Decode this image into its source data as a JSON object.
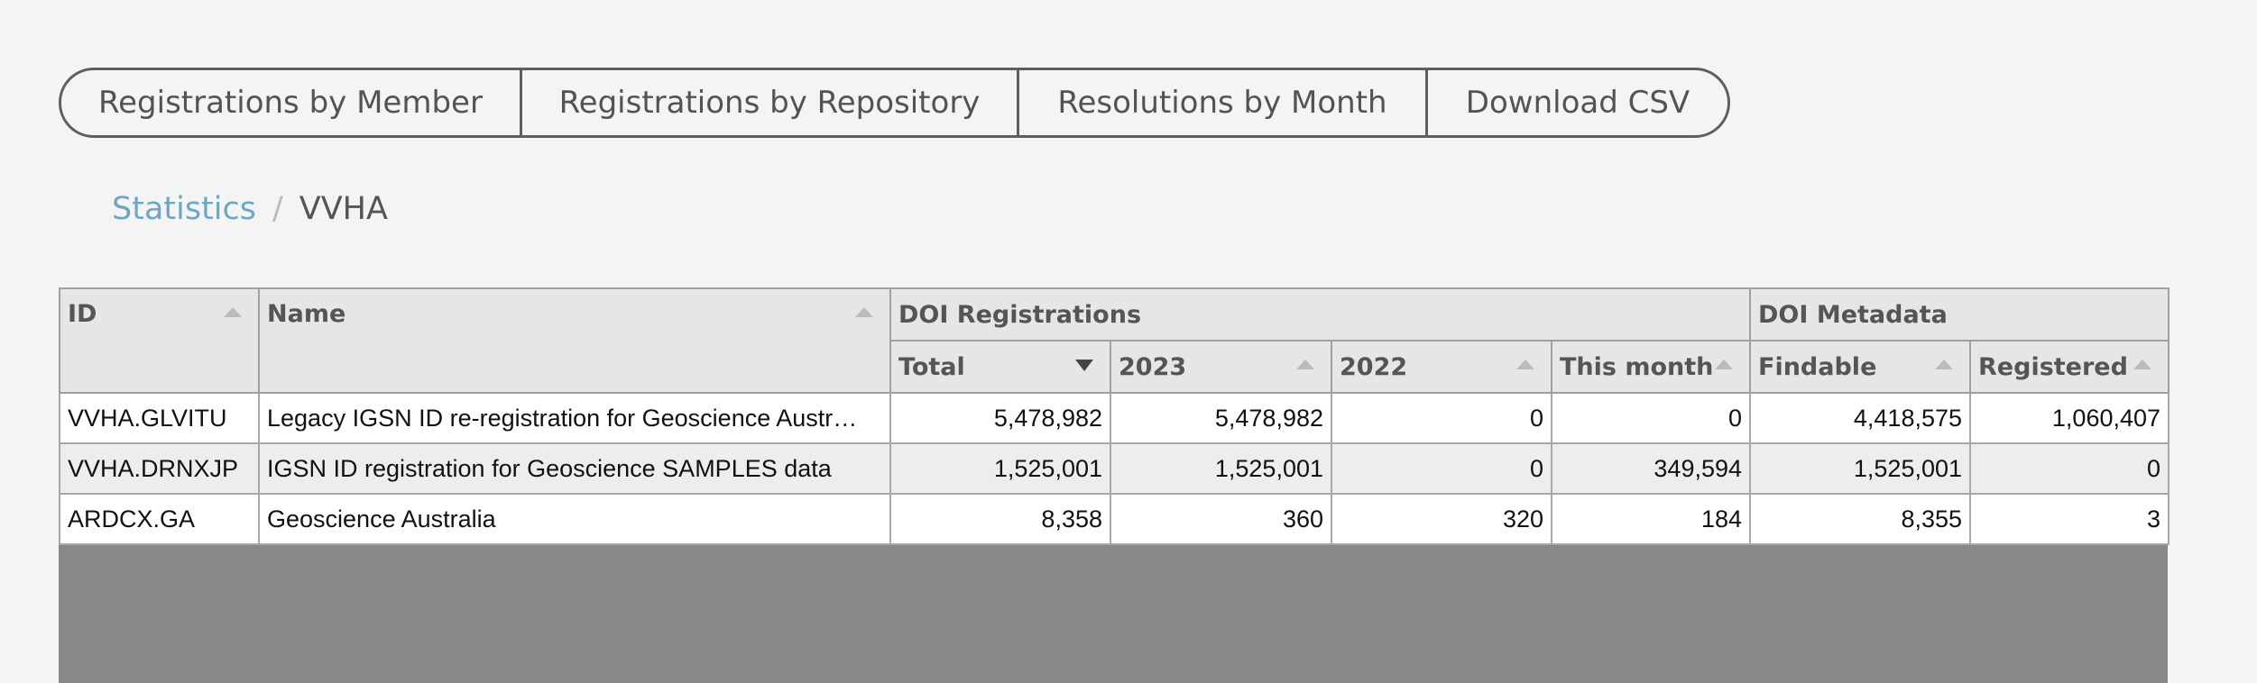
{
  "tabs": [
    "Registrations by Member",
    "Registrations by Repository",
    "Resolutions by Month",
    "Download CSV"
  ],
  "breadcrumb": {
    "root": "Statistics",
    "separator": "/",
    "current": "VVHA"
  },
  "table": {
    "group_headers": [
      "DOI Registrations",
      "DOI Metadata"
    ],
    "columns": [
      "ID",
      "Name",
      "Total",
      "2023",
      "2022",
      "This month",
      "Findable",
      "Registered"
    ],
    "rows": [
      [
        "VVHA.GLVITU",
        "Legacy IGSN ID re-registration for Geoscience Austr…",
        "5,478,982",
        "5,478,982",
        "0",
        "0",
        "4,418,575",
        "1,060,407"
      ],
      [
        "VVHA.DRNXJP",
        "IGSN ID registration for Geoscience SAMPLES data",
        "1,525,001",
        "1,525,001",
        "0",
        "349,594",
        "1,525,001",
        "0"
      ],
      [
        "ARDCX.GA",
        "Geoscience Australia",
        "8,358",
        "360",
        "320",
        "184",
        "8,355",
        "3"
      ]
    ]
  }
}
